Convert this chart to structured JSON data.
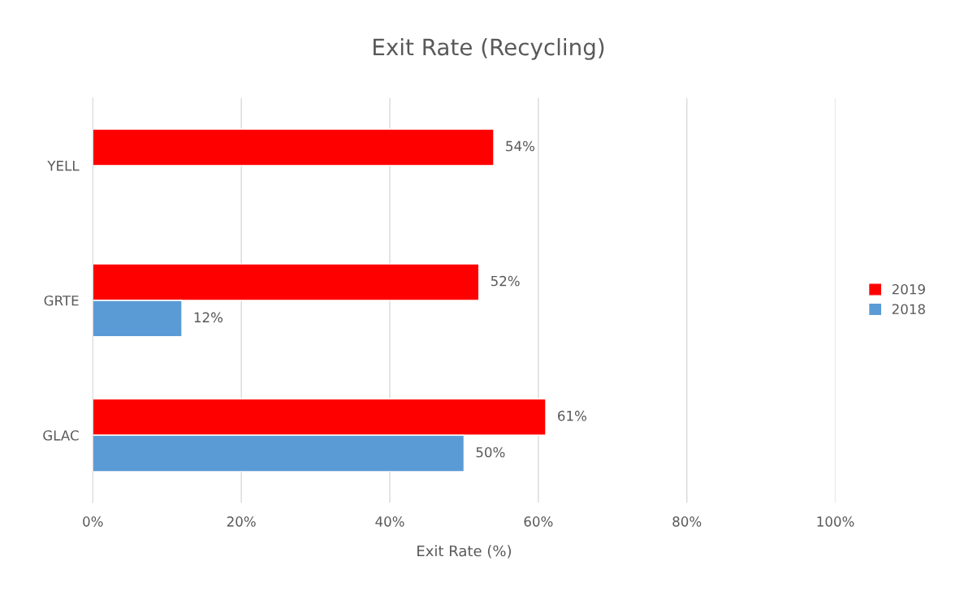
{
  "chart_data": {
    "type": "bar",
    "orientation": "horizontal",
    "title": "Exit Rate (Recycling)",
    "xlabel": "Exit Rate (%)",
    "categories": [
      "YELL",
      "GRTE",
      "GLAC"
    ],
    "series": [
      {
        "name": "2019",
        "color": "#ff0000",
        "values": [
          54,
          52,
          61
        ],
        "value_labels": [
          "54%",
          "52%",
          "61%"
        ]
      },
      {
        "name": "2018",
        "color": "#5b9bd5",
        "values": [
          null,
          12,
          50
        ],
        "value_labels": [
          null,
          "12%",
          "50%"
        ]
      }
    ],
    "xlim": [
      0,
      100
    ],
    "xticks": [
      {
        "value": 0,
        "label": "0%"
      },
      {
        "value": 20,
        "label": "20%"
      },
      {
        "value": 40,
        "label": "40%"
      },
      {
        "value": 60,
        "label": "60%"
      },
      {
        "value": 80,
        "label": "80%"
      },
      {
        "value": 100,
        "label": "100%"
      }
    ],
    "grid": "x",
    "legend": "right"
  }
}
